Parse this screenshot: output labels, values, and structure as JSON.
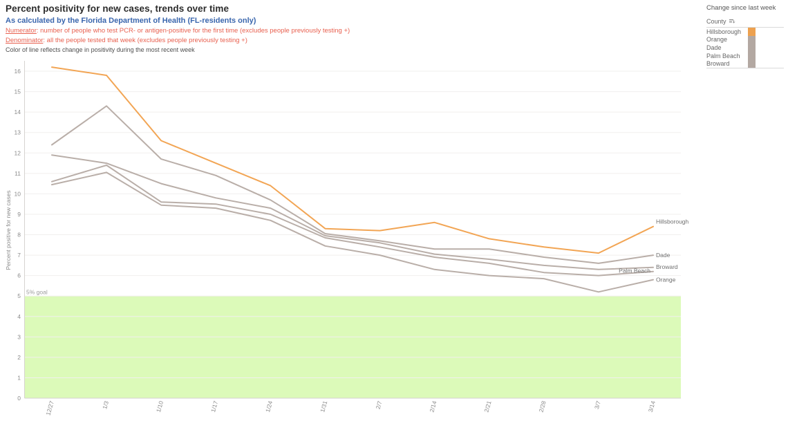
{
  "header": {
    "title": "Percent positivity for new cases, trends over time",
    "subtitle": "As calculated by the Florida Department of Health (FL-residents only)",
    "numerator_label": "Numerator",
    "numerator_rest": ": number of people who test PCR- or antigen-positive for the first time (excludes people previously testing +)",
    "denominator_label": "Denominator",
    "denominator_rest": ": all the people tested that week (excludes people previously testing +)",
    "note": "Color of line reflects change in positivity during the most recent week"
  },
  "legend": {
    "title": "Change since last week",
    "column_header": "County",
    "sort_icon": "sort-icon",
    "rows": [
      {
        "label": "Hillsborough",
        "color": "#eda14f"
      },
      {
        "label": "Orange",
        "color": "#b3a8a2"
      },
      {
        "label": "Dade",
        "color": "#b3a8a2"
      },
      {
        "label": "Palm Beach",
        "color": "#b3a8a2"
      },
      {
        "label": "Broward",
        "color": "#b3a8a2"
      }
    ]
  },
  "chart_data": {
    "type": "line",
    "title": "",
    "xlabel": "",
    "ylabel": "Percent positive for new cases",
    "x": [
      "12/27",
      "1/3",
      "1/10",
      "1/17",
      "1/24",
      "1/31",
      "2/7",
      "2/14",
      "2/21",
      "2/28",
      "3/7",
      "3/14"
    ],
    "ylim": [
      0,
      16.4
    ],
    "ytick_step": 1,
    "grid": "horizontal",
    "legend_position": "top-right",
    "goal_band": {
      "label": "5% goal",
      "from": 0,
      "to": 5,
      "color": "#dcfab9"
    },
    "series": [
      {
        "name": "Dade",
        "color": "#b9aea8",
        "values": [
          12.4,
          14.3,
          11.7,
          10.9,
          9.7,
          8.05,
          7.7,
          7.3,
          7.3,
          6.9,
          6.6,
          7.0
        ],
        "label_anchor": "start",
        "label_dx": 4,
        "label_dy": 3
      },
      {
        "name": "Broward",
        "color": "#b9aea8",
        "values": [
          11.9,
          11.5,
          10.5,
          9.8,
          9.3,
          7.95,
          7.6,
          7.05,
          6.8,
          6.5,
          6.3,
          6.4
        ],
        "label_anchor": "start",
        "label_dx": 4,
        "label_dy": 2
      },
      {
        "name": "Palm Beach",
        "color": "#b9aea8",
        "values": [
          10.6,
          11.4,
          9.6,
          9.5,
          9.0,
          7.85,
          7.4,
          6.9,
          6.6,
          6.15,
          6.0,
          6.2
        ],
        "label_anchor": "end",
        "label_dx": -2,
        "label_dy": 2
      },
      {
        "name": "Orange",
        "color": "#b9aea8",
        "values": [
          10.45,
          11.05,
          9.45,
          9.3,
          8.7,
          7.45,
          7.0,
          6.3,
          6.0,
          5.85,
          5.2,
          5.8
        ],
        "label_anchor": "start",
        "label_dx": 4,
        "label_dy": 3
      },
      {
        "name": "Hillsborough",
        "color": "#f2a554",
        "values": [
          16.2,
          15.8,
          12.6,
          11.5,
          10.4,
          8.3,
          8.2,
          8.6,
          7.8,
          7.4,
          7.1,
          8.4
        ],
        "label_anchor": "start",
        "label_dx": 4,
        "label_dy": -4
      }
    ]
  }
}
